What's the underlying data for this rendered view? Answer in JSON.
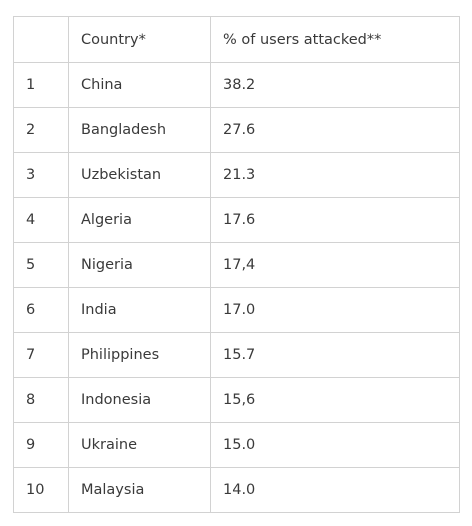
{
  "table": {
    "headers": {
      "rank": "",
      "country": "Country*",
      "percent": "% of users attacked**"
    },
    "rows": [
      {
        "rank": "1",
        "country": "China",
        "percent": "38.2"
      },
      {
        "rank": "2",
        "country": "Bangladesh",
        "percent": "27.6"
      },
      {
        "rank": "3",
        "country": "Uzbekistan",
        "percent": "21.3"
      },
      {
        "rank": "4",
        "country": "Algeria",
        "percent": "17.6"
      },
      {
        "rank": "5",
        "country": "Nigeria",
        "percent": "17,4"
      },
      {
        "rank": "6",
        "country": "India",
        "percent": "17.0"
      },
      {
        "rank": "7",
        "country": "Philippines",
        "percent": "15.7"
      },
      {
        "rank": "8",
        "country": "Indonesia",
        "percent": "15,6"
      },
      {
        "rank": "9",
        "country": "Ukraine",
        "percent": "15.0"
      },
      {
        "rank": "10",
        "country": "Malaysia",
        "percent": "14.0"
      }
    ]
  }
}
